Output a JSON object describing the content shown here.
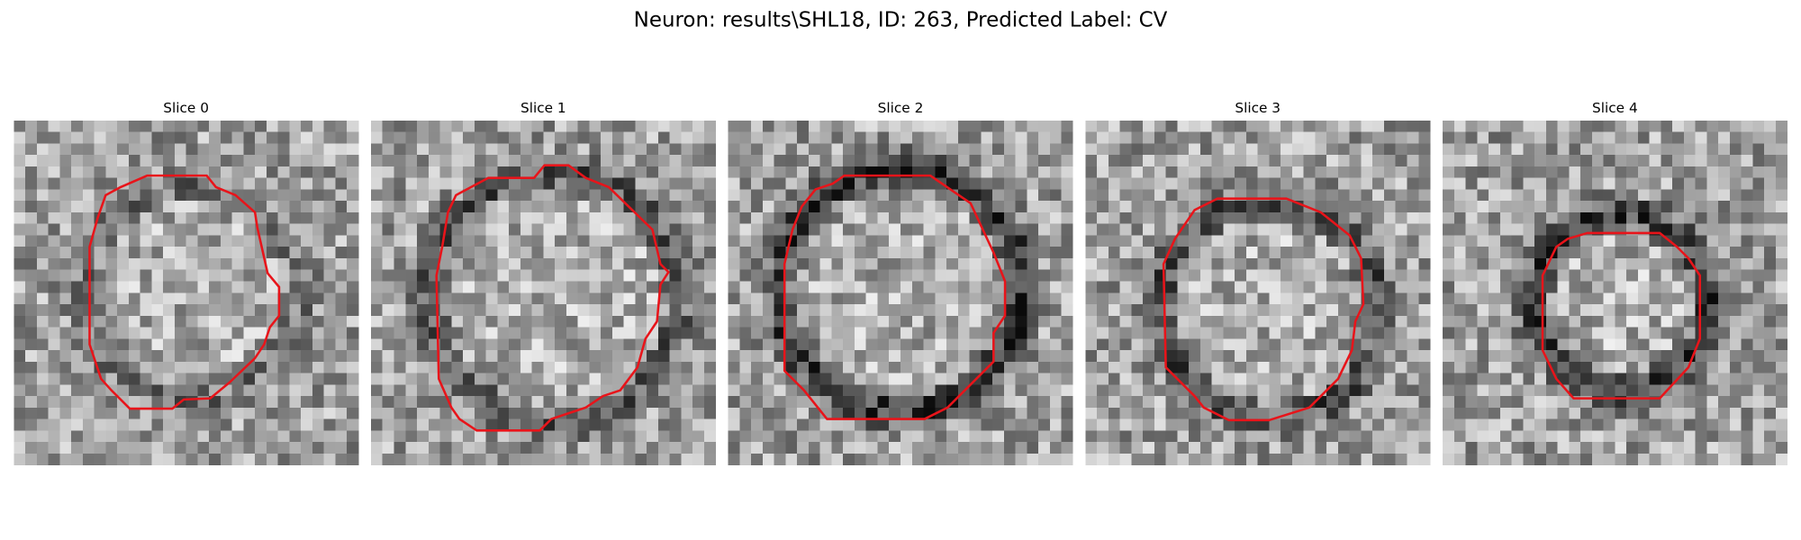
{
  "title": "Neuron: results\\SHL18, ID: 263, Predicted Label: CV",
  "panels": [
    {
      "title": "Slice 0"
    },
    {
      "title": "Slice 1"
    },
    {
      "title": "Slice 2"
    },
    {
      "title": "Slice 3"
    },
    {
      "title": "Slice 4"
    }
  ]
}
